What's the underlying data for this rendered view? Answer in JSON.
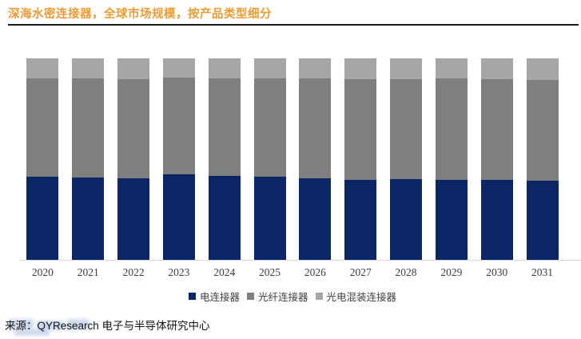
{
  "header": {
    "title": "深海水密连接器，全球市场规模，按产品类型细分"
  },
  "chart_data": {
    "type": "bar",
    "stacked": true,
    "percent": true,
    "title": "深海水密连接器，全球市场规模，按产品类型细分",
    "categories": [
      "2020",
      "2021",
      "2022",
      "2023",
      "2024",
      "2025",
      "2026",
      "2027",
      "2028",
      "2029",
      "2030",
      "2031"
    ],
    "series": [
      {
        "name": "电连接器",
        "key": "electrical-connector",
        "color": "#0B2664",
        "values": [
          41.4,
          41.0,
          40.6,
          42.6,
          41.8,
          41.4,
          40.6,
          39.8,
          40.2,
          39.8,
          39.8,
          39.4
        ]
      },
      {
        "name": "光纤连接器",
        "key": "fiber-optic-connector",
        "color": "#7F7F7F",
        "values": [
          48.7,
          49.1,
          49.1,
          47.9,
          48.3,
          48.7,
          49.5,
          49.9,
          49.5,
          50.3,
          49.9,
          50.0
        ]
      },
      {
        "name": "光电混装连接器",
        "key": "electro-optical-hybrid-connector",
        "color": "#A6A6A6",
        "values": [
          9.9,
          9.9,
          10.3,
          9.5,
          9.9,
          9.9,
          9.9,
          10.3,
          10.3,
          9.9,
          10.3,
          10.6
        ]
      }
    ],
    "ylim": [
      0,
      100
    ],
    "grid": false,
    "y_axis_visible": false,
    "legend_position": "bottom",
    "xlabel": "",
    "ylabel": ""
  },
  "footer": {
    "source": "来源：QYResearch 电子与半导体研究中心"
  },
  "colors": {
    "title": "#ED9B33",
    "title_rule": "#1B1B1B",
    "axis_line": "#D9D9D9",
    "axis_label": "#3D3D3D",
    "legend_text": "#404040",
    "source_text": "#141414",
    "watermark": "#9DB7DC"
  }
}
